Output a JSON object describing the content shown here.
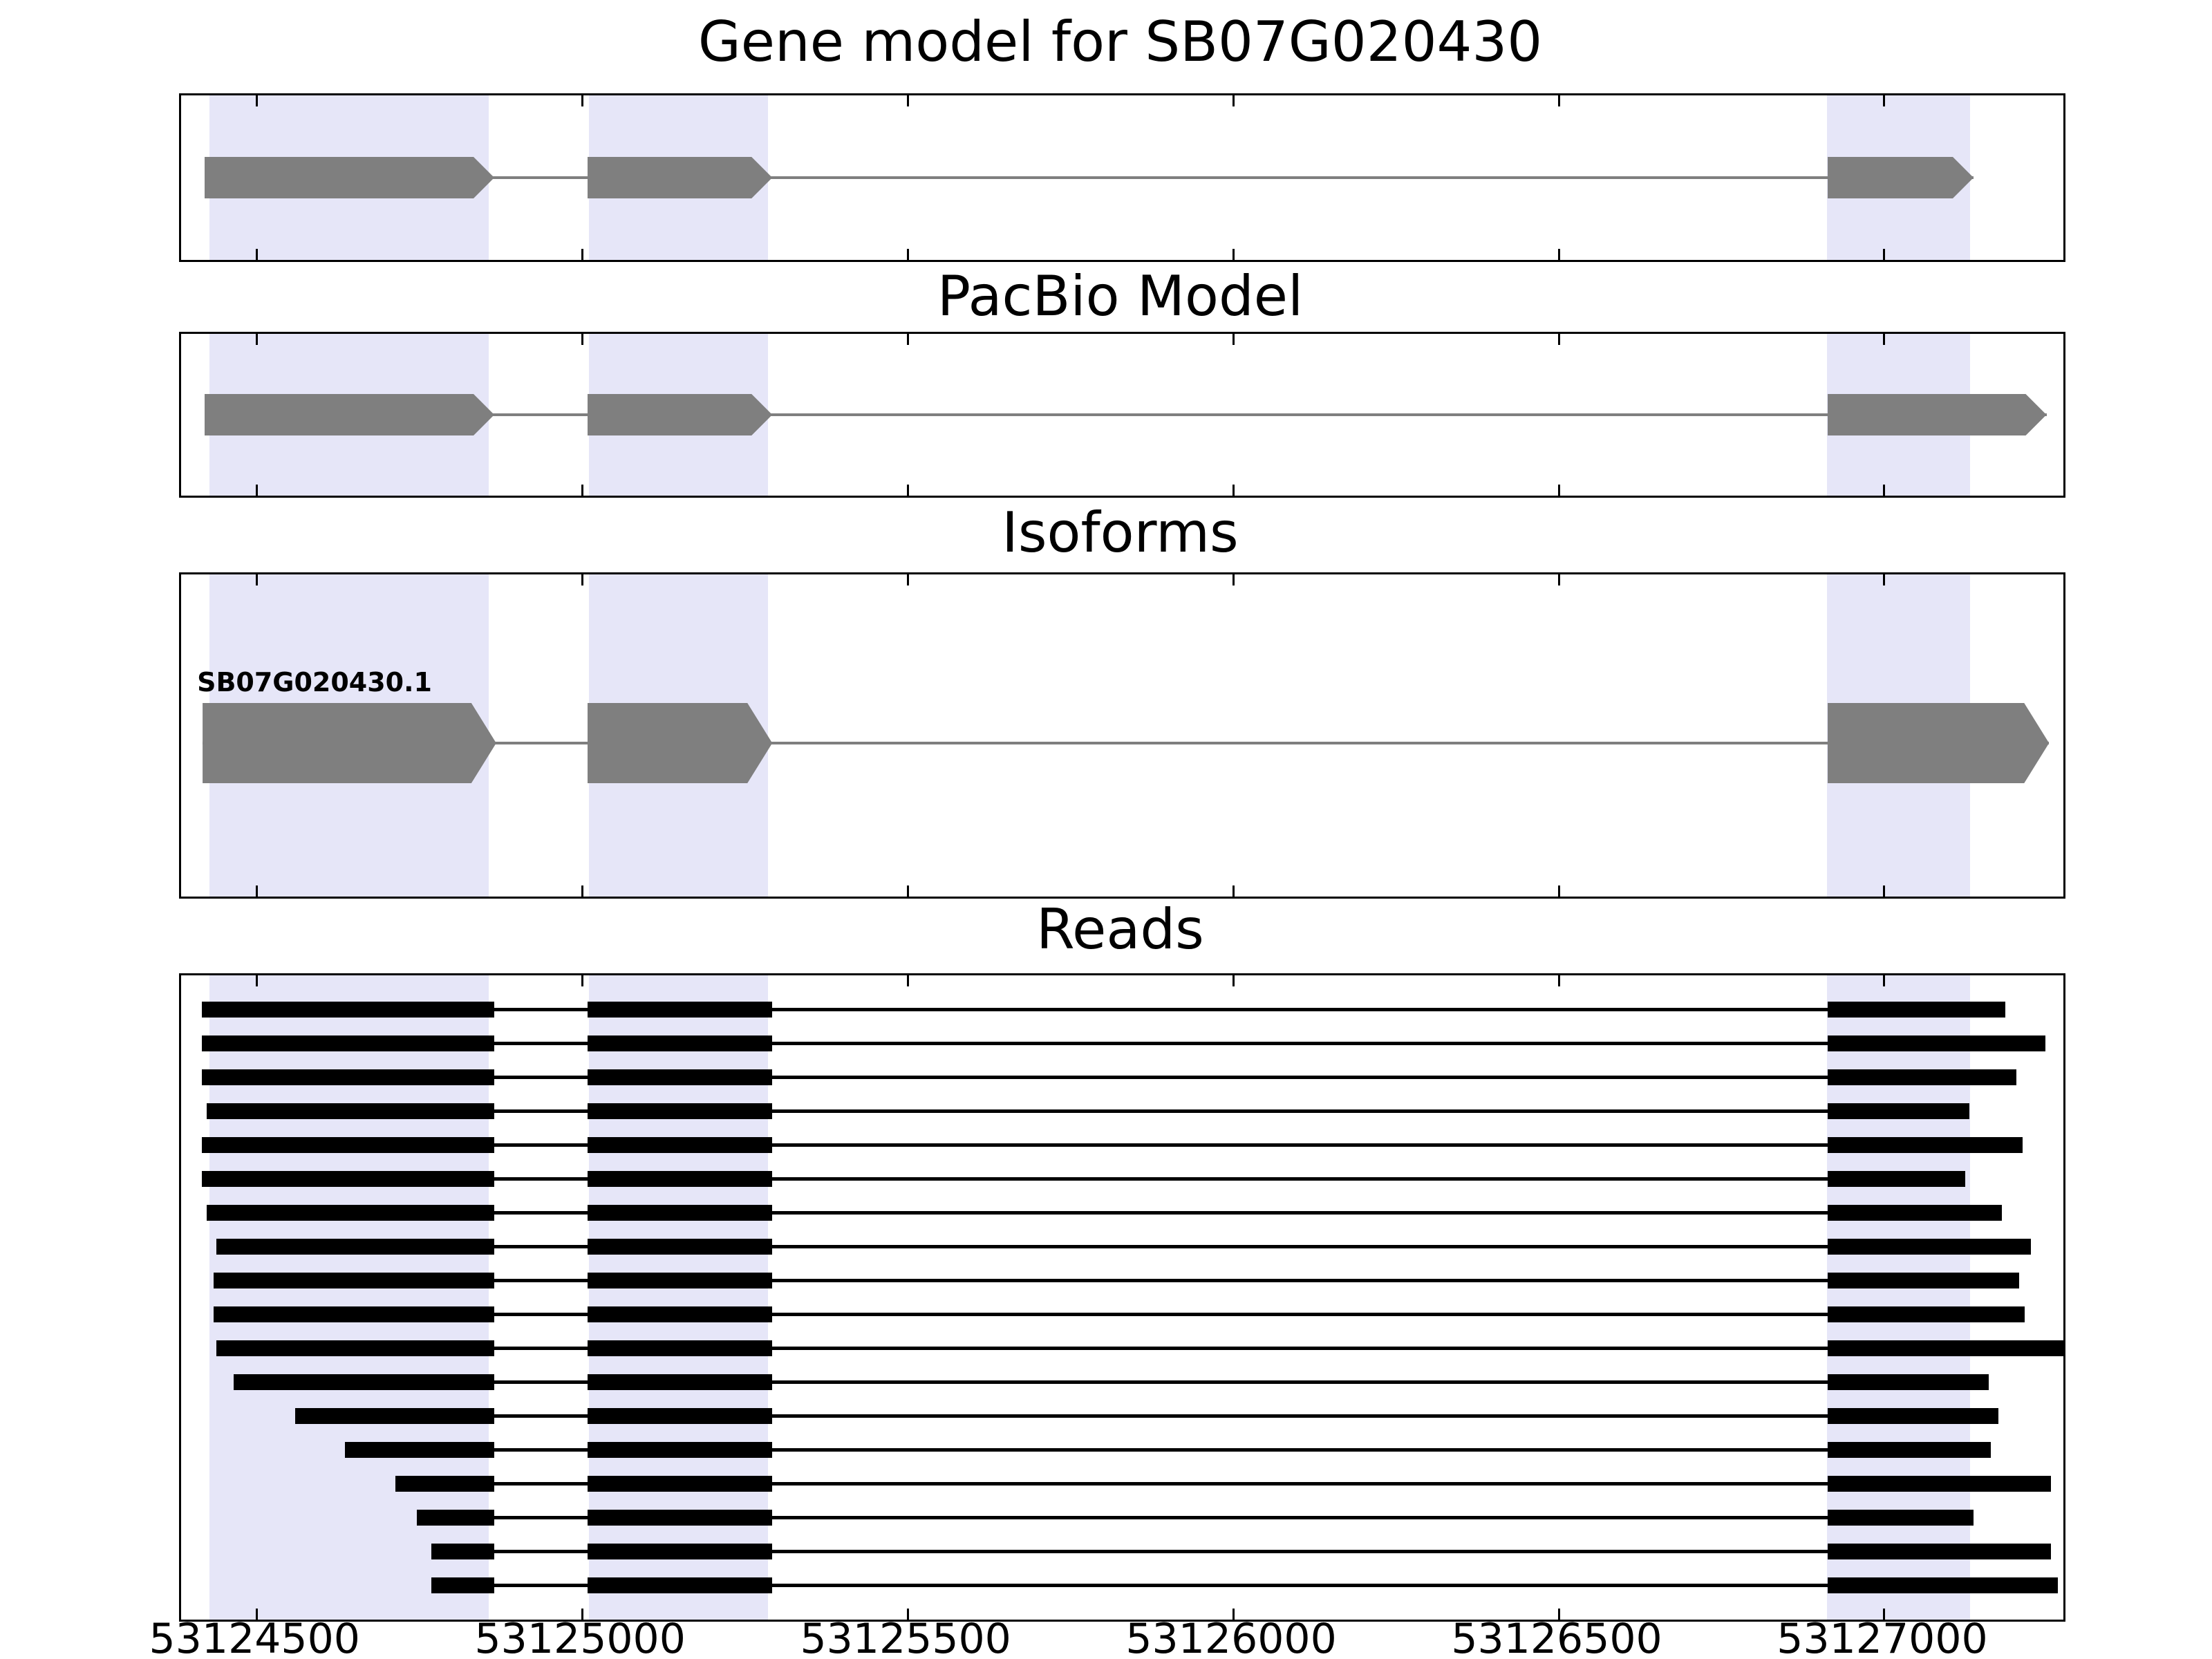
{
  "chart_data": {
    "type": "gene-model-browser",
    "title": "Gene model for SB07G020430",
    "xlim": [
      53124384,
      53127275
    ],
    "x_ticks": [
      53124500,
      53125000,
      53125500,
      53126000,
      53126500,
      53127000
    ],
    "x_tick_labels": [
      "53124500",
      "53125000",
      "53125500",
      "53126000",
      "53126500",
      "53127000"
    ],
    "highlight_regions": [
      [
        53124427,
        53124856
      ],
      [
        53125010,
        53125285
      ],
      [
        53126912,
        53127132
      ]
    ],
    "highlight_color": "#e6e6f8",
    "exon_color": "#7f7f7f",
    "read_color": "#000000",
    "panels": [
      {
        "id": "gene_model",
        "title": "Gene model for SB07G020430",
        "type": "model",
        "strand": "+",
        "exons": [
          [
            53124420,
            53124865
          ],
          [
            53125008,
            53125292
          ],
          [
            53126913,
            53127137
          ]
        ]
      },
      {
        "id": "pacbio_model",
        "title": "PacBio Model",
        "type": "model",
        "strand": "+",
        "exons": [
          [
            53124420,
            53124865
          ],
          [
            53125008,
            53125292
          ],
          [
            53126913,
            53127249
          ]
        ]
      },
      {
        "id": "isoforms",
        "title": "Isoforms",
        "type": "isoform",
        "isoforms": [
          {
            "label": "SB07G020430.1",
            "strand": "+",
            "exons": [
              [
                53124417,
                53124868
              ],
              [
                53125008,
                53125292
              ],
              [
                53126913,
                53127253
              ]
            ]
          }
        ]
      },
      {
        "id": "reads",
        "title": "Reads",
        "type": "reads",
        "exon_windows": [
          [
            null,
            53124865
          ],
          [
            53125008,
            53125292
          ],
          [
            53126913,
            null
          ]
        ],
        "reads": [
          {
            "start": 53124416,
            "end": 53127186
          },
          {
            "start": 53124416,
            "end": 53127247
          },
          {
            "start": 53124416,
            "end": 53127203
          },
          {
            "start": 53124423,
            "end": 53127131
          },
          {
            "start": 53124416,
            "end": 53127212
          },
          {
            "start": 53124416,
            "end": 53127124
          },
          {
            "start": 53124423,
            "end": 53127181
          },
          {
            "start": 53124438,
            "end": 53127225
          },
          {
            "start": 53124434,
            "end": 53127207
          },
          {
            "start": 53124434,
            "end": 53127216
          },
          {
            "start": 53124438,
            "end": 53127275
          },
          {
            "start": 53124465,
            "end": 53127160
          },
          {
            "start": 53124559,
            "end": 53127175
          },
          {
            "start": 53124636,
            "end": 53127164
          },
          {
            "start": 53124713,
            "end": 53127256
          },
          {
            "start": 53124746,
            "end": 53127137
          },
          {
            "start": 53124768,
            "end": 53127256
          },
          {
            "start": 53124768,
            "end": 53127267
          }
        ]
      }
    ]
  }
}
